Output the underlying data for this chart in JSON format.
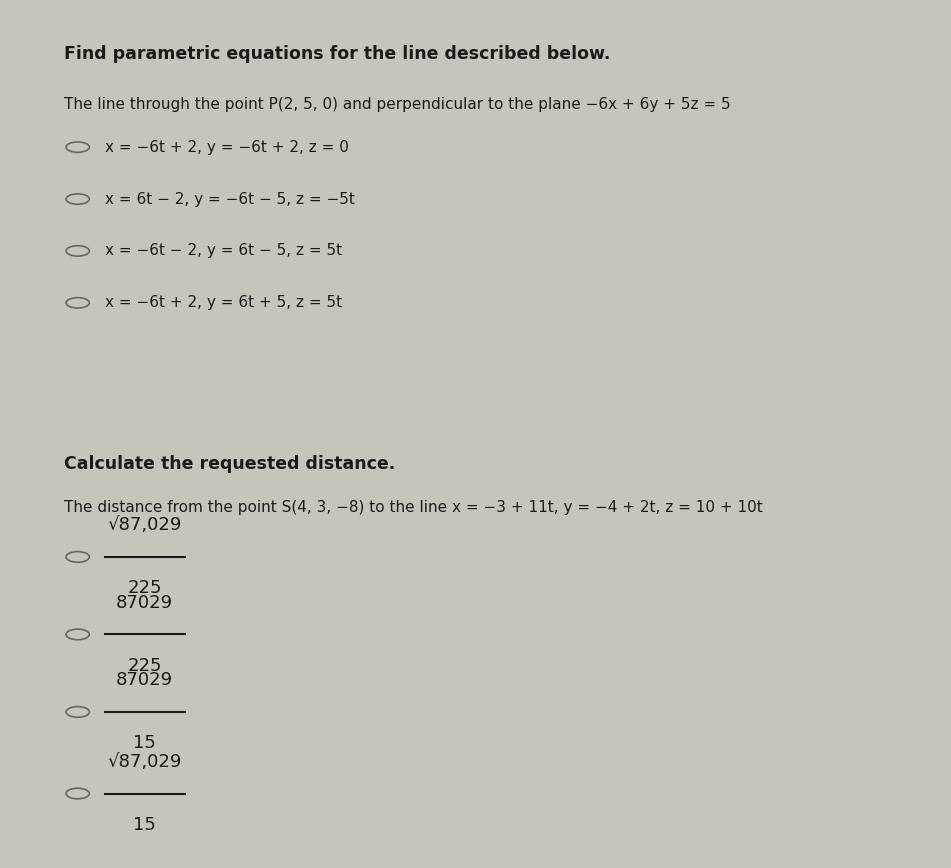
{
  "bg_color": "#c8c4bc",
  "panel1_bg": "#e8e4dc",
  "panel2_bg": "#dedad2",
  "title1": "Find parametric equations for the line described below.",
  "title2": "Calculate the requested distance.",
  "q1_text": "The line through the point P(2, 5, 0) and perpendicular to the plane −6x + 6y + 5z = 5",
  "q1_options": [
    "x = −6t + 2, y = −6t + 2, z = 0",
    "x = 6t − 2, y = −6t − 5, z = −5t",
    "x = −6t − 2, y = 6t − 5, z = 5t",
    "x = −6t + 2, y = 6t + 5, z = 5t"
  ],
  "q2_text": "The distance from the point S(4, 3, −8) to the line x = −3 + 11t, y = −4 + 2t, z = 10 + 10t",
  "q2_options_numerators": [
    "√87,029",
    "87029",
    "87029",
    "√87,029"
  ],
  "q2_options_denominators": [
    "225",
    "225",
    "15",
    "15"
  ]
}
